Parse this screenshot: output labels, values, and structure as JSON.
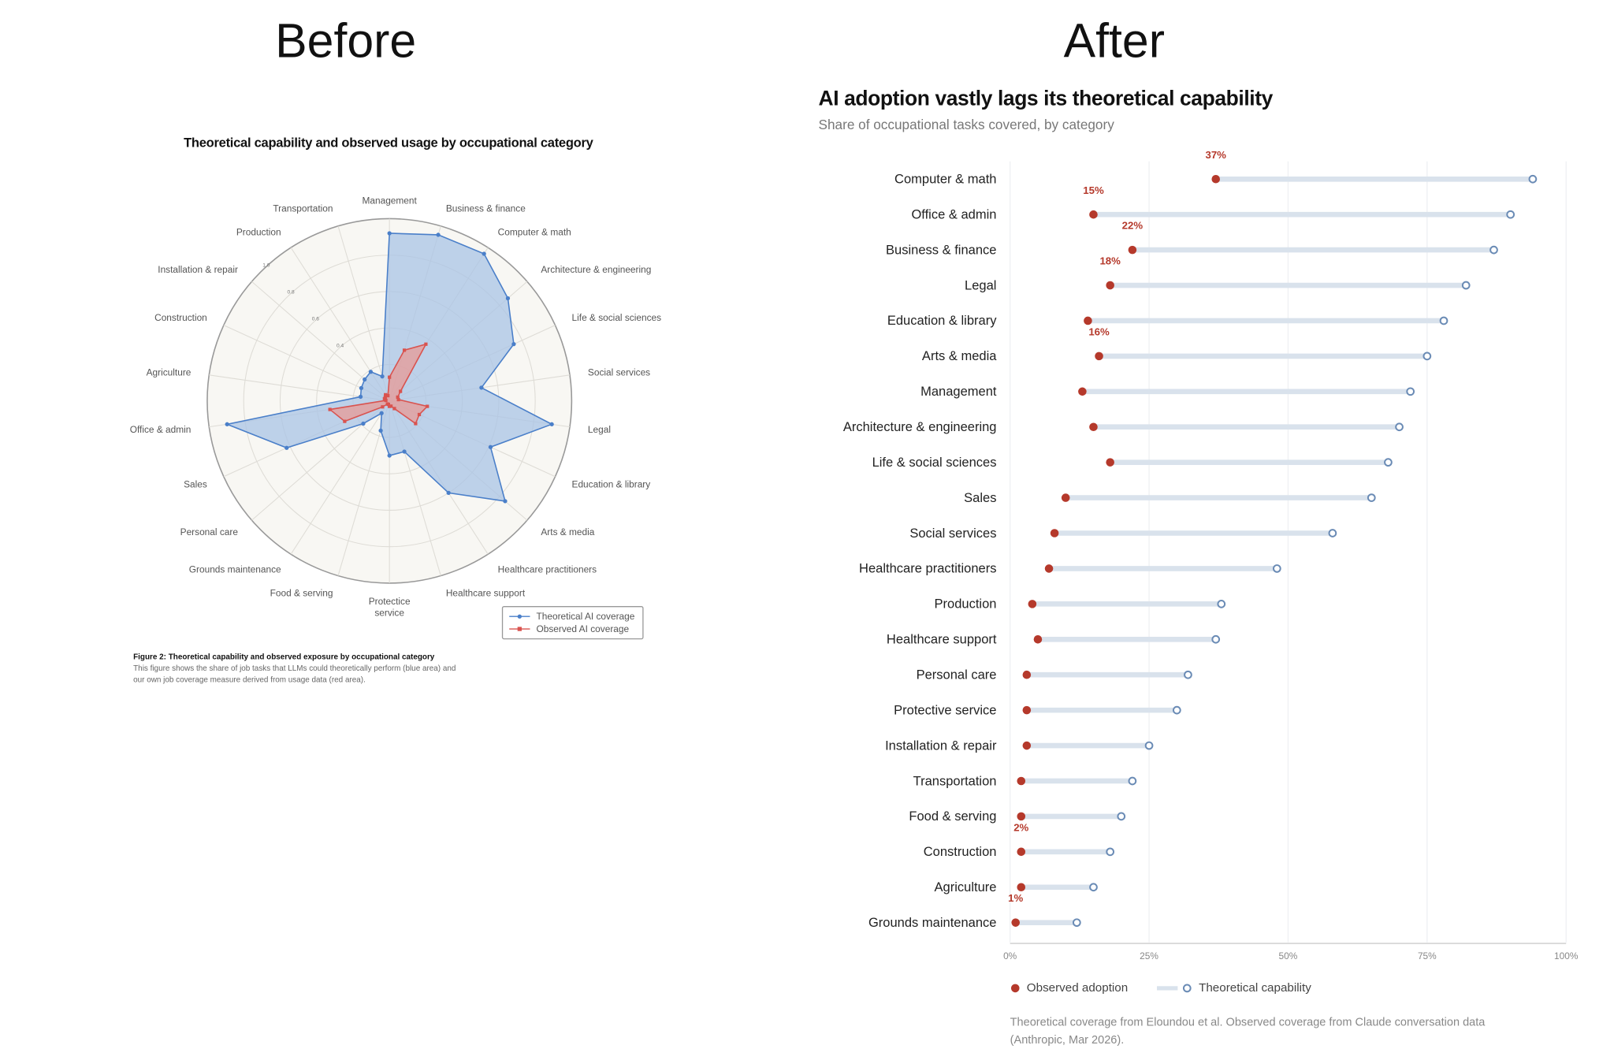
{
  "headings": {
    "before": "Before",
    "after": "After"
  },
  "chart_data": [
    {
      "type": "radar",
      "title": "Theoretical capability and observed usage by occupational category",
      "categories": [
        "Management",
        "Business & finance",
        "Computer & math",
        "Architecture & engineering",
        "Life & social sciences",
        "Social services",
        "Legal",
        "Education & library",
        "Arts & media",
        "Healthcare practitioners",
        "Healthcare support",
        "Protectice\nservice",
        "Food & serving",
        "Grounds maintenance",
        "Personal care",
        "Sales",
        "Office & admin",
        "Agriculture",
        "Construction",
        "Installation & repair",
        "Production",
        "Transportation"
      ],
      "radial_ticks": [
        "0.4",
        "0.6",
        "0.8",
        "1.0"
      ],
      "rmax": 1.0,
      "series": [
        {
          "name": "Theoretical AI coverage",
          "color": "#4a7fc9",
          "fill": "#a9c4e6",
          "values": [
            0.92,
            0.95,
            0.96,
            0.86,
            0.75,
            0.51,
            0.9,
            0.61,
            0.84,
            0.6,
            0.29,
            0.3,
            0.17,
            0.08,
            0.19,
            0.62,
            0.9,
            0.16,
            0.17,
            0.18,
            0.19,
            0.14
          ]
        },
        {
          "name": "Observed AI coverage",
          "color": "#d9534f",
          "fill": "#e89a96",
          "values": [
            0.13,
            0.29,
            0.37,
            0.08,
            0.05,
            0.05,
            0.21,
            0.18,
            0.19,
            0.05,
            0.03,
            0.03,
            0.02,
            0.02,
            0.05,
            0.27,
            0.33,
            0.02,
            0.03,
            0.03,
            0.04,
            0.03
          ]
        }
      ],
      "legend": "bottom-right",
      "caption_title": "Figure 2: Theoretical capability and observed exposure by occupational category",
      "caption_text": "This figure shows the share of job tasks that LLMs could theoretically perform (blue area) and our own job coverage measure derived from usage data (red area)."
    },
    {
      "type": "dumbbell",
      "title": "AI adoption vastly lags its theoretical capability",
      "subtitle": "Share of occupational tasks covered, by category",
      "categories": [
        "Computer & math",
        "Office & admin",
        "Business & finance",
        "Legal",
        "Education & library",
        "Arts & media",
        "Management",
        "Architecture & engineering",
        "Life & social sciences",
        "Sales",
        "Social services",
        "Healthcare practitioners",
        "Production",
        "Healthcare support",
        "Personal care",
        "Protective service",
        "Installation & repair",
        "Transportation",
        "Food & serving",
        "Construction",
        "Agriculture",
        "Grounds maintenance"
      ],
      "series": [
        {
          "name": "Observed adoption",
          "color": "#b5392b",
          "values": [
            37,
            15,
            22,
            18,
            14,
            16,
            13,
            15,
            18,
            10,
            8,
            7,
            4,
            5,
            3,
            3,
            3,
            2,
            2,
            2,
            2,
            1
          ]
        },
        {
          "name": "Theoretical capability",
          "color": "#6a8bb5",
          "values": [
            94,
            90,
            87,
            82,
            78,
            75,
            72,
            70,
            68,
            65,
            58,
            48,
            38,
            37,
            32,
            30,
            25,
            22,
            20,
            18,
            15,
            12
          ]
        }
      ],
      "data_labels": [
        {
          "category": "Computer & math",
          "text": "37%"
        },
        {
          "category": "Office & admin",
          "text": "15%"
        },
        {
          "category": "Business & finance",
          "text": "22%"
        },
        {
          "category": "Legal",
          "text": "18%"
        },
        {
          "category": "Arts & media",
          "text": "16%"
        },
        {
          "category": "Construction",
          "text": "2%"
        },
        {
          "category": "Grounds maintenance",
          "text": "1%"
        }
      ],
      "xlim": [
        0,
        100
      ],
      "x_ticks": [
        "0%",
        "25%",
        "50%",
        "75%",
        "100%"
      ],
      "grid": true,
      "legend": "bottom-left",
      "source": "Theoretical coverage from Eloundou et al. Observed coverage from Claude conversation data (Anthropic, Mar 2026)."
    }
  ]
}
